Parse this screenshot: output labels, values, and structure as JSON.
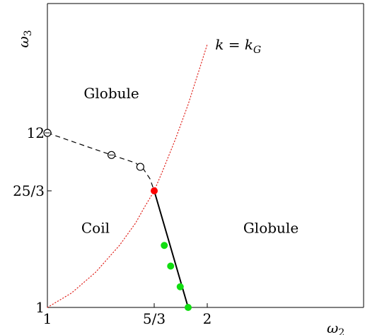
{
  "chart_data": {
    "type": "line",
    "title": "",
    "xlabel": "ω₂",
    "ylabel": "ω₃",
    "xlim": [
      1,
      3.0
    ],
    "ylim": [
      1,
      19
    ],
    "x_ticks": [
      {
        "value": 1,
        "label": "1"
      },
      {
        "value": 1.6667,
        "label": "5/3"
      },
      {
        "value": 2,
        "label": "2"
      }
    ],
    "y_ticks": [
      {
        "value": 1,
        "label": "1"
      },
      {
        "value": 8.3333,
        "label": "25/3"
      },
      {
        "value": 12,
        "label": "12"
      }
    ],
    "series": [
      {
        "name": "",
        "style": "dotted",
        "color": "#e0211b",
        "x": [
          1.0,
          1.15,
          1.3,
          1.45,
          1.55,
          1.6,
          1.6667,
          1.72,
          1.8,
          1.88,
          1.95,
          2.0
        ],
        "y": [
          1.0,
          1.9,
          3.2,
          4.9,
          6.3,
          7.2,
          8.3333,
          9.6,
          11.6,
          13.8,
          16.0,
          17.6
        ]
      },
      {
        "name": "",
        "style": "dashed",
        "color": "#000000",
        "x": [
          1.0,
          1.2,
          1.4,
          1.55,
          1.6,
          1.64,
          1.6667
        ],
        "y": [
          12.0,
          11.3,
          10.6,
          10.1,
          9.7,
          9.1,
          8.3333
        ]
      },
      {
        "name": "",
        "style": "solid",
        "color": "#000000",
        "x": [
          1.6667,
          1.88
        ],
        "y": [
          8.3333,
          1.0
        ]
      }
    ],
    "points": [
      {
        "x": 1.6667,
        "y": 8.3333,
        "style": "filled",
        "color": "#ff0000"
      },
      {
        "x": 1.0,
        "y": 12.0,
        "style": "open-cross",
        "color": "#000000"
      },
      {
        "x": 1.4,
        "y": 10.6,
        "style": "open-cross",
        "color": "#000000"
      },
      {
        "x": 1.58,
        "y": 9.85,
        "style": "open",
        "color": "#000000"
      },
      {
        "x": 1.73,
        "y": 4.9,
        "style": "filled",
        "color": "#11dd11"
      },
      {
        "x": 1.77,
        "y": 3.6,
        "style": "filled",
        "color": "#11dd11"
      },
      {
        "x": 1.83,
        "y": 2.3,
        "style": "filled",
        "color": "#11dd11"
      },
      {
        "x": 1.88,
        "y": 1.0,
        "style": "filled",
        "color": "#11dd11"
      }
    ],
    "annotations": [
      {
        "text": "Globule",
        "x": 1.4,
        "y": 14.5
      },
      {
        "text": "Coil",
        "x": 1.3,
        "y": 6.0
      },
      {
        "text": "Globule",
        "x": 2.4,
        "y": 6.0
      },
      {
        "text": "k = k_G",
        "x": 2.05,
        "y": 17.6
      }
    ],
    "grid": false,
    "legend": "none"
  }
}
